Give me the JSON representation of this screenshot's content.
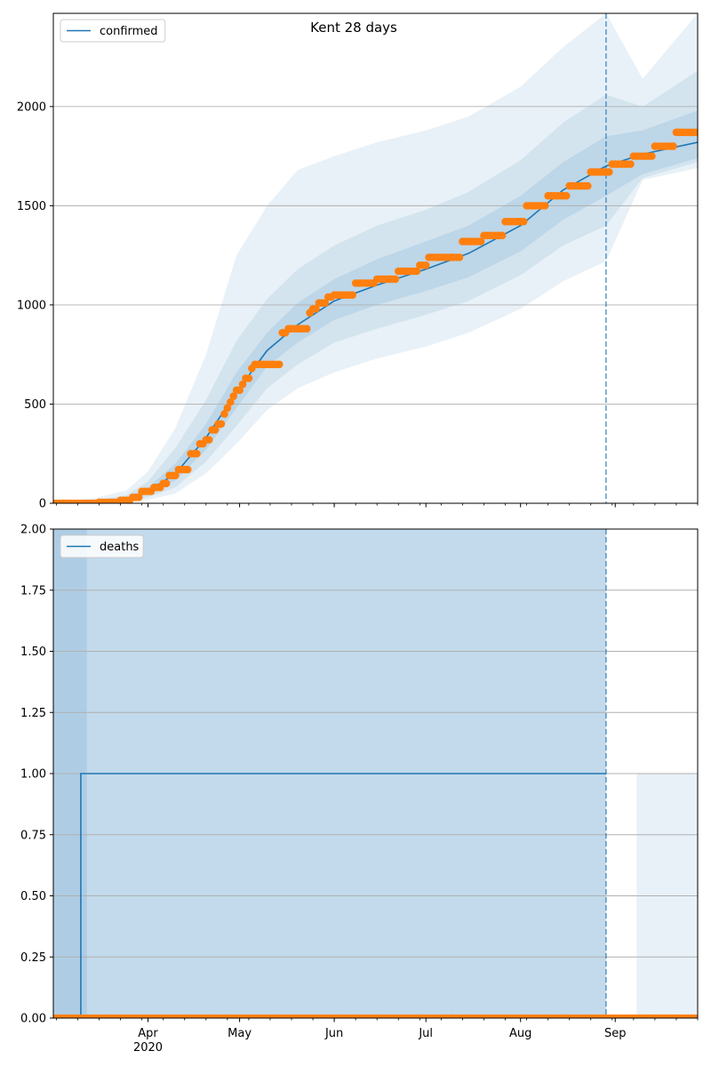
{
  "figure": {
    "title": "Kent 28 days"
  },
  "colors": {
    "model": "#1f77b4",
    "observed": "#ff7f0e",
    "grid": "#b0b0b0"
  },
  "chart_data": [
    {
      "type": "line",
      "title": "Kent 28 days",
      "legend": {
        "label": "confirmed",
        "placement": "top-left"
      },
      "ylim": [
        0,
        2470
      ],
      "yticks": [
        {
          "value": 0,
          "label": "0"
        },
        {
          "value": 500,
          "label": "500"
        },
        {
          "value": 1000,
          "label": "1000"
        },
        {
          "value": 1500,
          "label": "1500"
        },
        {
          "value": 2000,
          "label": "2000"
        }
      ],
      "grid": true,
      "forecast_start": "2020-08-29",
      "model": {
        "x": [
          "2020-03-01",
          "2020-03-15",
          "2020-03-25",
          "2020-04-01",
          "2020-04-10",
          "2020-04-20",
          "2020-04-30",
          "2020-05-10",
          "2020-05-20",
          "2020-06-01",
          "2020-06-15",
          "2020-07-01",
          "2020-07-15",
          "2020-08-01",
          "2020-08-15",
          "2020-08-29",
          "2020-09-10",
          "2020-09-28"
        ],
        "median": [
          0,
          5,
          20,
          60,
          150,
          330,
          560,
          770,
          900,
          1020,
          1100,
          1180,
          1260,
          1400,
          1580,
          1700,
          1760,
          1820
        ],
        "band50": {
          "lower": [
            0,
            3,
            14,
            45,
            115,
            270,
            480,
            690,
            810,
            925,
            1000,
            1070,
            1140,
            1270,
            1430,
            1550,
            1660,
            1740
          ],
          "upper": [
            0,
            8,
            28,
            80,
            200,
            400,
            660,
            860,
            1010,
            1130,
            1230,
            1320,
            1400,
            1550,
            1720,
            1850,
            1880,
            1980
          ]
        },
        "band80": {
          "lower": [
            0,
            2,
            8,
            30,
            80,
            210,
            390,
            580,
            700,
            810,
            880,
            950,
            1020,
            1150,
            1300,
            1400,
            1640,
            1720
          ],
          "upper": [
            0,
            14,
            42,
            110,
            280,
            520,
            820,
            1030,
            1180,
            1300,
            1400,
            1480,
            1570,
            1730,
            1920,
            2060,
            2000,
            2180
          ]
        },
        "band95": {
          "lower": [
            0,
            1,
            4,
            16,
            50,
            150,
            300,
            470,
            580,
            660,
            730,
            790,
            860,
            980,
            1120,
            1220,
            1630,
            1690
          ],
          "upper": [
            0,
            28,
            65,
            160,
            380,
            750,
            1250,
            1500,
            1680,
            1750,
            1820,
            1880,
            1950,
            2100,
            2300,
            2470,
            2140,
            2470
          ]
        }
      },
      "observed": {
        "steps": [
          [
            "2020-03-01",
            0
          ],
          [
            "2020-03-16",
            5
          ],
          [
            "2020-03-23",
            15
          ],
          [
            "2020-03-27",
            30
          ],
          [
            "2020-03-30",
            60
          ],
          [
            "2020-04-03",
            80
          ],
          [
            "2020-04-06",
            100
          ],
          [
            "2020-04-08",
            140
          ],
          [
            "2020-04-11",
            170
          ],
          [
            "2020-04-15",
            250
          ],
          [
            "2020-04-18",
            300
          ],
          [
            "2020-04-20",
            320
          ],
          [
            "2020-04-22",
            370
          ],
          [
            "2020-04-24",
            400
          ],
          [
            "2020-04-26",
            450
          ],
          [
            "2020-04-27",
            480
          ],
          [
            "2020-04-28",
            510
          ],
          [
            "2020-04-29",
            540
          ],
          [
            "2020-04-30",
            570
          ],
          [
            "2020-05-02",
            600
          ],
          [
            "2020-05-03",
            630
          ],
          [
            "2020-05-05",
            680
          ],
          [
            "2020-05-06",
            700
          ],
          [
            "2020-05-15",
            860
          ],
          [
            "2020-05-17",
            880
          ],
          [
            "2020-05-24",
            960
          ],
          [
            "2020-05-25",
            980
          ],
          [
            "2020-05-27",
            1010
          ],
          [
            "2020-05-30",
            1040
          ],
          [
            "2020-06-01",
            1050
          ],
          [
            "2020-06-08",
            1110
          ],
          [
            "2020-06-15",
            1130
          ],
          [
            "2020-06-22",
            1170
          ],
          [
            "2020-06-29",
            1200
          ],
          [
            "2020-07-02",
            1240
          ],
          [
            "2020-07-13",
            1320
          ],
          [
            "2020-07-20",
            1350
          ],
          [
            "2020-07-27",
            1420
          ],
          [
            "2020-08-03",
            1500
          ],
          [
            "2020-08-10",
            1550
          ],
          [
            "2020-08-17",
            1600
          ],
          [
            "2020-08-24",
            1670
          ],
          [
            "2020-08-31",
            1710
          ],
          [
            "2020-09-07",
            1750
          ],
          [
            "2020-09-14",
            1800
          ],
          [
            "2020-09-21",
            1870
          ]
        ],
        "end": "2020-09-28"
      }
    },
    {
      "type": "line",
      "legend": {
        "label": "deaths",
        "placement": "top-left"
      },
      "ylim": [
        0,
        2
      ],
      "yticks": [
        {
          "value": 0,
          "label": "0.00"
        },
        {
          "value": 0.25,
          "label": "0.25"
        },
        {
          "value": 0.5,
          "label": "0.50"
        },
        {
          "value": 0.75,
          "label": "0.75"
        },
        {
          "value": 1.0,
          "label": "1.00"
        },
        {
          "value": 1.25,
          "label": "1.25"
        },
        {
          "value": 1.5,
          "label": "1.50"
        },
        {
          "value": 1.75,
          "label": "1.75"
        },
        {
          "value": 2.0,
          "label": "2.00"
        }
      ],
      "grid": true,
      "forecast_start": "2020-08-29",
      "model": {
        "x": [
          "2020-03-01",
          "2020-03-10",
          "2020-03-10",
          "2020-08-29"
        ],
        "median": [
          0,
          0,
          1,
          1
        ]
      },
      "bands": [
        {
          "name": "band_dark",
          "x": [
            "2020-03-01",
            "2020-08-29"
          ],
          "lower": [
            0,
            0
          ],
          "upper": [
            2,
            2
          ]
        },
        {
          "name": "band_left",
          "x": [
            "2020-03-01",
            "2020-03-12"
          ],
          "lower": [
            0,
            0
          ],
          "upper": [
            2,
            2
          ]
        },
        {
          "name": "band_forecast",
          "x": [
            "2020-09-08",
            "2020-09-28"
          ],
          "lower": [
            0,
            0
          ],
          "upper": [
            1,
            1
          ]
        }
      ],
      "observed": {
        "value": 0,
        "start": "2020-03-01",
        "end": "2020-09-28"
      }
    }
  ],
  "xaxis": {
    "domain": [
      "2020-03-01",
      "2020-09-28"
    ],
    "major_ticks": [
      {
        "date": "2020-04-01",
        "label": "Apr",
        "sublabel": "2020"
      },
      {
        "date": "2020-05-01",
        "label": "May"
      },
      {
        "date": "2020-06-01",
        "label": "Jun"
      },
      {
        "date": "2020-07-01",
        "label": "Jul"
      },
      {
        "date": "2020-08-01",
        "label": "Aug"
      },
      {
        "date": "2020-09-01",
        "label": "Sep"
      }
    ]
  }
}
